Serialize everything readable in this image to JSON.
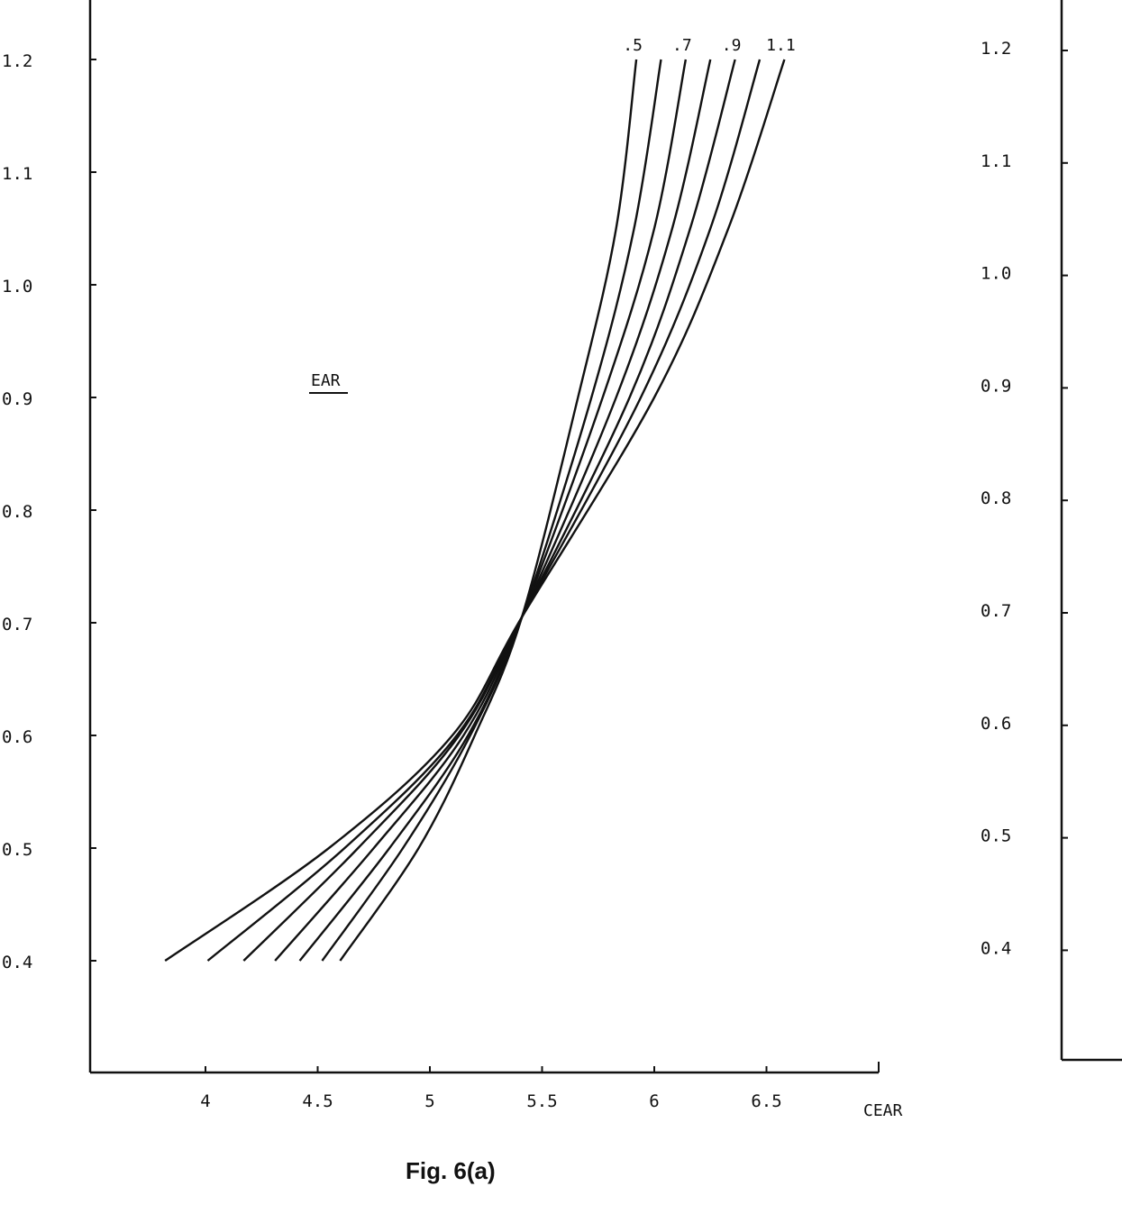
{
  "chart_data": [
    {
      "type": "line",
      "caption": "Fig. 6(a)",
      "xlabel": "CEAR",
      "ylabel": "EAR",
      "xlim": [
        3.49,
        7.0
      ],
      "ylim": [
        0.3,
        1.25
      ],
      "grid": false,
      "x_ticks": [
        "4",
        "4.5",
        "5",
        "5.5",
        "6",
        "6.5"
      ],
      "x_tick_values": [
        4,
        4.5,
        5,
        5.5,
        6,
        6.5
      ],
      "y_ticks": [
        "1.2",
        "1.1",
        "1.0",
        "0.9",
        "0.8",
        "0.7",
        "0.6",
        "0.5",
        "0.4"
      ],
      "y_tick_values": [
        1.2,
        1.1,
        1.0,
        0.9,
        0.8,
        0.7,
        0.6,
        0.5,
        0.4
      ],
      "curve_labels": [
        ".5",
        ".7",
        ".9",
        "1.1"
      ],
      "curve_label_series_index": [
        0,
        2,
        4,
        6
      ],
      "y": [
        0.4,
        0.5,
        0.6,
        0.705,
        0.9,
        1.05,
        1.2
      ],
      "series": [
        {
          "x": [
            4.6,
            4.95,
            5.2,
            5.41,
            5.66,
            5.83,
            5.92
          ]
        },
        {
          "x": [
            4.52,
            4.88,
            5.18,
            5.41,
            5.72,
            5.91,
            6.03
          ]
        },
        {
          "x": [
            4.42,
            4.82,
            5.17,
            5.41,
            5.77,
            6.0,
            6.14
          ]
        },
        {
          "x": [
            4.31,
            4.75,
            5.15,
            5.41,
            5.83,
            6.08,
            6.25
          ]
        },
        {
          "x": [
            4.17,
            4.68,
            5.13,
            5.41,
            5.89,
            6.16,
            6.36
          ]
        },
        {
          "x": [
            4.01,
            4.62,
            5.12,
            5.41,
            5.94,
            6.25,
            6.47
          ]
        },
        {
          "x": [
            3.82,
            4.55,
            5.1,
            5.41,
            6.0,
            6.33,
            6.58
          ]
        }
      ],
      "line_color": "#111111"
    },
    {
      "type": "line",
      "note_partial": true,
      "y_ticks": [
        "1.2",
        "1.1",
        "1.0",
        "0.9",
        "0.8",
        "0.7",
        "0.6",
        "0.5",
        "0.4"
      ],
      "y_tick_values": [
        1.2,
        1.1,
        1.0,
        0.9,
        0.8,
        0.7,
        0.6,
        0.5,
        0.4
      ],
      "series": []
    }
  ]
}
